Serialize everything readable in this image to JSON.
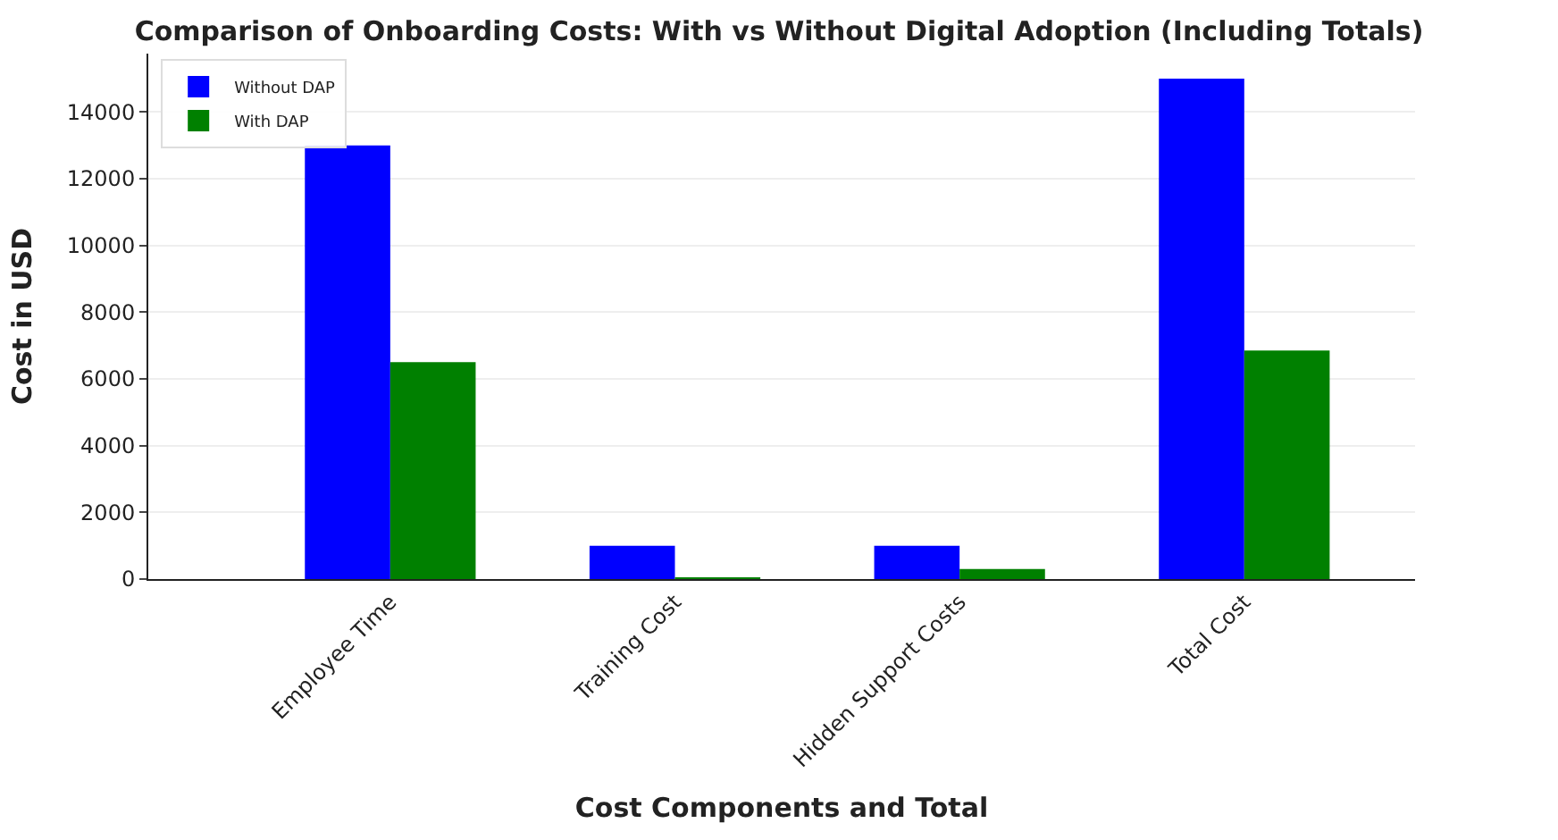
{
  "chart_data": {
    "type": "bar",
    "title": "Comparison of Onboarding Costs: With vs Without Digital Adoption (Including Totals)",
    "xlabel": "Cost Components and Total",
    "ylabel": "Cost in USD",
    "categories": [
      "Employee Time",
      "Training Cost",
      "Hidden Support Costs",
      "Total Cost"
    ],
    "series": [
      {
        "name": "Without DAP",
        "color": "#0000ff",
        "values": [
          13000,
          1000,
          1000,
          15000
        ]
      },
      {
        "name": "With DAP",
        "color": "#008000",
        "values": [
          6500,
          50,
          300,
          6850
        ]
      }
    ],
    "ylim": [
      0,
      15750
    ],
    "yticks": [
      0,
      2000,
      4000,
      6000,
      8000,
      10000,
      12000,
      14000
    ],
    "grid": "y",
    "legend": "top left"
  }
}
